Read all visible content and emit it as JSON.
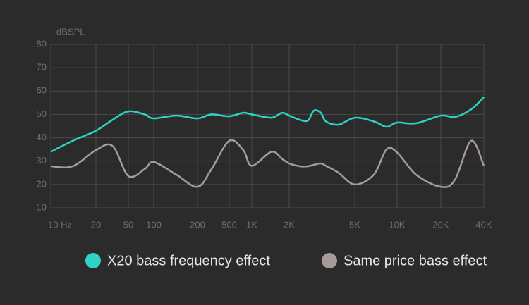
{
  "chart_data": {
    "type": "line",
    "ylabel": "dBSPL",
    "x": [
      10,
      14,
      20,
      32,
      50,
      78,
      100,
      143,
      200,
      300,
      500,
      771,
      1000,
      1440,
      1750,
      2000,
      2320,
      2600,
      2820,
      3110,
      3340,
      3990,
      5000,
      6830,
      8400,
      10000,
      13500,
      20000,
      25100,
      32600,
      40000
    ],
    "series": [
      {
        "name": "X20 bass frequency effect",
        "color": "#2ed3c6",
        "values": [
          34,
          38.7,
          43,
          47.7,
          51.3,
          50,
          48.3,
          49.5,
          48.3,
          50,
          49.2,
          50.7,
          50,
          48.6,
          50.7,
          49.5,
          47.7,
          47.4,
          51.6,
          50.7,
          47,
          45.6,
          48.6,
          47,
          44.7,
          46.5,
          46.2,
          49.5,
          48.9,
          52.2,
          57.4
        ]
      },
      {
        "name": "Same price bass effect",
        "color": "#a89a9a",
        "values": [
          27.8,
          27.8,
          34.7,
          36.5,
          23.6,
          26.6,
          29.6,
          24.2,
          19,
          26.6,
          38.7,
          34.7,
          28,
          34,
          31,
          29,
          27.8,
          27.8,
          28.4,
          29,
          28,
          25,
          20,
          24.2,
          35,
          33.7,
          24.2,
          19,
          22,
          38.7,
          28
        ]
      }
    ],
    "xlim": [
      10,
      40000
    ],
    "xticks": [
      {
        "value": 10,
        "label": "10 Hz"
      },
      20,
      50,
      100,
      200,
      500,
      {
        "value": 1000,
        "label": "1K"
      },
      {
        "value": 2000,
        "label": "2K"
      },
      {
        "value": 5000,
        "label": "5K"
      },
      {
        "value": 10000,
        "label": "10K"
      },
      {
        "value": 20000,
        "label": "20K"
      },
      {
        "value": 40000,
        "label": "40K"
      }
    ],
    "ylim": [
      10,
      80
    ],
    "yticks": [
      10,
      20,
      30,
      40,
      50,
      60,
      70,
      80
    ],
    "grid": true,
    "legend": "bottom"
  }
}
